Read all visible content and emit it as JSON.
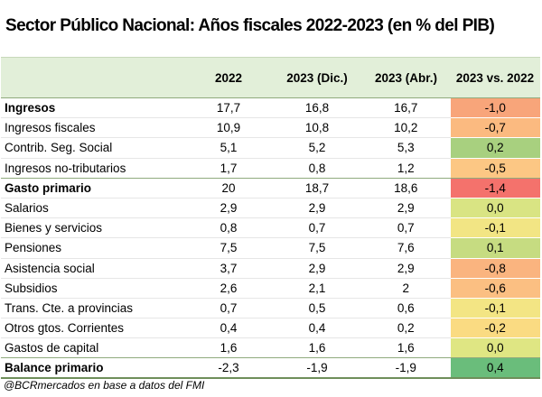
{
  "title": "Sector Público Nacional: Años fiscales 2022-2023 (en % del PIB)",
  "columns": [
    "",
    "2022",
    "2023 (Dic.)",
    "2023 (Abr.)",
    "2023 vs. 2022"
  ],
  "rows": [
    {
      "label": "Ingresos",
      "v2022": "17,7",
      "dic": "16,8",
      "abr": "16,7",
      "delta": "-1,0",
      "bold": true,
      "color": "#f8a57a"
    },
    {
      "label": "Ingresos fiscales",
      "v2022": "10,9",
      "dic": "10,8",
      "abr": "10,2",
      "delta": "-0,7",
      "bold": false,
      "color": "#fbba80"
    },
    {
      "label": "Contrib. Seg. Social",
      "v2022": "5,1",
      "dic": "5,2",
      "abr": "5,3",
      "delta": "0,2",
      "bold": false,
      "color": "#a8d07f"
    },
    {
      "label": "Ingresos no-tributarios",
      "v2022": "1,7",
      "dic": "0,8",
      "abr": "1,2",
      "delta": "-0,5",
      "bold": false,
      "color": "#fcc784"
    },
    {
      "label": "Gasto primario",
      "v2022": "20",
      "dic": "18,7",
      "abr": "18,6",
      "delta": "-1,4",
      "bold": true,
      "color": "#f4726c"
    },
    {
      "label": "Salarios",
      "v2022": "2,9",
      "dic": "2,9",
      "abr": "2,9",
      "delta": "0,0",
      "bold": false,
      "color": "#d9e483"
    },
    {
      "label": "Bienes y servicios",
      "v2022": "0,8",
      "dic": "0,7",
      "abr": "0,7",
      "delta": "-0,1",
      "bold": false,
      "color": "#f2e584"
    },
    {
      "label": "Pensiones",
      "v2022": "7,5",
      "dic": "7,5",
      "abr": "7,6",
      "delta": "0,1",
      "bold": false,
      "color": "#c6dc81"
    },
    {
      "label": "Asistencia social",
      "v2022": "3,7",
      "dic": "2,9",
      "abr": "2,9",
      "delta": "-0,8",
      "bold": false,
      "color": "#fab47f"
    },
    {
      "label": "Subsidios",
      "v2022": "2,6",
      "dic": "2,1",
      "abr": "2",
      "delta": "-0,6",
      "bold": false,
      "color": "#fbbf82"
    },
    {
      "label": "Trans. Cte. a provincias",
      "v2022": "0,7",
      "dic": "0,5",
      "abr": "0,6",
      "delta": "-0,1",
      "bold": false,
      "color": "#f3e584"
    },
    {
      "label": "Otros gtos. Corrientes",
      "v2022": "0,4",
      "dic": "0,4",
      "abr": "0,2",
      "delta": "-0,2",
      "bold": false,
      "color": "#fadb82"
    },
    {
      "label": "Gastos de capital",
      "v2022": "1,6",
      "dic": "1,6",
      "abr": "1,6",
      "delta": "0,0",
      "bold": false,
      "color": "#dfe683"
    },
    {
      "label": "Balance primario",
      "v2022": "-2,3",
      "dic": "-1,9",
      "abr": "-1,9",
      "delta": "0,4",
      "bold": true,
      "color": "#6abd7b"
    }
  ],
  "footer": "@BCRmercados en base a datos del FMI"
}
